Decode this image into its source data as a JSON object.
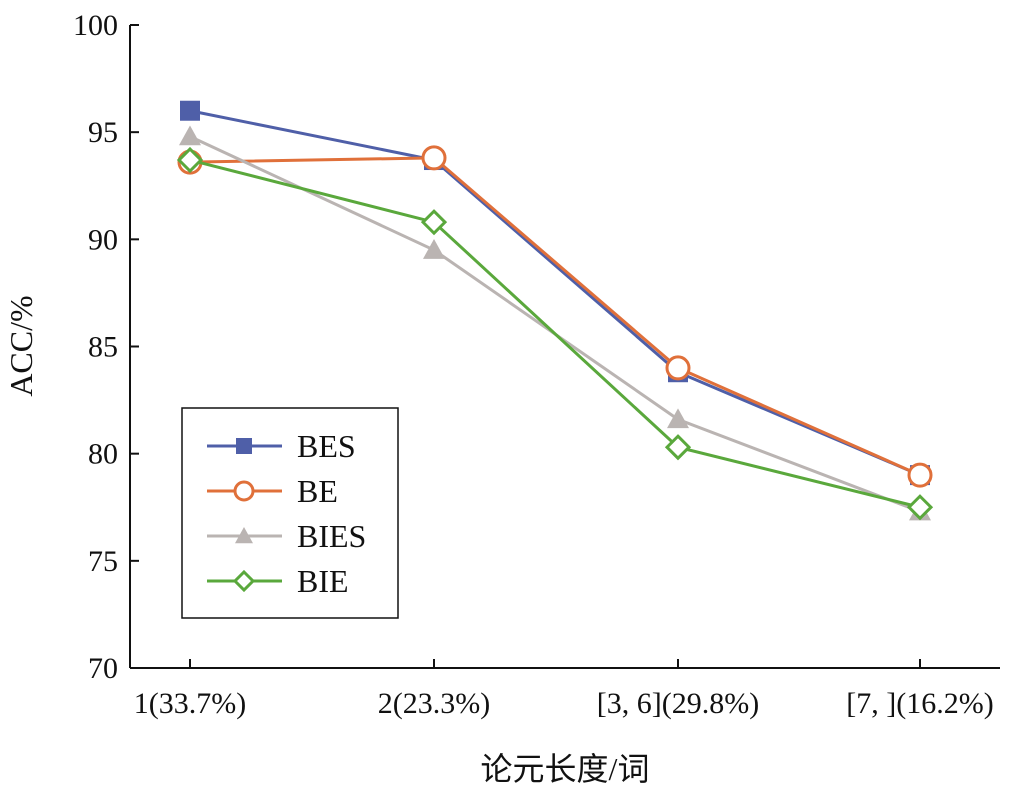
{
  "chart_data": {
    "type": "line",
    "title": "",
    "xlabel": "论元长度/词",
    "ylabel": "ACC/%",
    "ylim": [
      70,
      100
    ],
    "yticks": [
      "70",
      "75",
      "80",
      "85",
      "90",
      "95",
      "100"
    ],
    "categories": [
      "1(33.7%)",
      "2(23.3%)",
      "[3, 6](29.8%)",
      "[7, ](16.2%)"
    ],
    "legend_position": "center-left",
    "series": [
      {
        "name": "BES",
        "values": [
          96.0,
          93.7,
          83.8,
          79.0
        ],
        "color": "#4f5fa8",
        "marker": "square"
      },
      {
        "name": "BE",
        "values": [
          93.6,
          93.8,
          84.0,
          79.0
        ],
        "color": "#e0703a",
        "marker": "circle-open"
      },
      {
        "name": "BIES",
        "values": [
          94.8,
          89.5,
          81.6,
          77.3
        ],
        "color": "#bab4b2",
        "marker": "triangle"
      },
      {
        "name": "BIE",
        "values": [
          93.7,
          90.8,
          80.3,
          77.5
        ],
        "color": "#5aa83c",
        "marker": "diamond-open"
      }
    ]
  }
}
